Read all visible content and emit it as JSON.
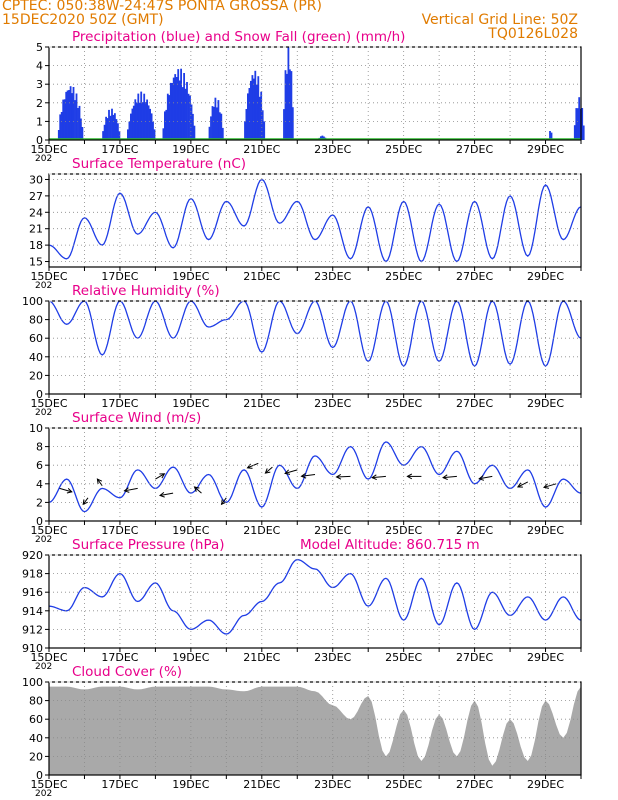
{
  "header": {
    "line1": "CPTEC:   050:38W-24:47S   PONTA GROSSA (PR)",
    "line2": "15DEC2020 50Z (GMT)",
    "grid_note": "Vertical Grid Line: 50Z",
    "code": "TQ0126L028"
  },
  "colors": {
    "header": "#e07b00",
    "title": "#e8008a",
    "series": "#1f3de6",
    "snow": "#2db82d",
    "cloud": "#a9a9a9"
  },
  "date_labels": [
    "15DEC",
    "17DEC",
    "19DEC",
    "21DEC",
    "23DEC",
    "25DEC",
    "27DEC",
    "29DEC"
  ],
  "year_stub": "202",
  "chart_data": [
    {
      "type": "bar",
      "id": "precip",
      "title": "Precipitation (blue) and Snow Fall (green) (mm/h)",
      "ylim": [
        0,
        5
      ],
      "yticks": [
        0,
        1,
        2,
        3,
        4,
        5
      ],
      "grid": true,
      "xlabel": "date",
      "ylabel": "mm/h",
      "bursts": [
        {
          "day": 0.25,
          "len": 0.7,
          "peak": 3.0
        },
        {
          "day": 1.5,
          "len": 0.5,
          "peak": 1.7
        },
        {
          "day": 2.2,
          "len": 0.8,
          "peak": 2.6
        },
        {
          "day": 3.2,
          "len": 0.9,
          "peak": 3.9
        },
        {
          "day": 4.5,
          "len": 0.4,
          "peak": 2.3
        },
        {
          "day": 5.5,
          "len": 0.6,
          "peak": 3.8
        },
        {
          "day": 6.6,
          "len": 0.3,
          "peak": 5.0
        },
        {
          "day": 7.6,
          "len": 0.2,
          "peak": 0.25
        },
        {
          "day": 14.1,
          "len": 0.1,
          "peak": 0.6
        },
        {
          "day": 14.8,
          "len": 0.3,
          "peak": 2.3
        }
      ]
    },
    {
      "type": "line",
      "id": "temperature",
      "title": "Surface Temperature (nC)",
      "ylim": [
        14,
        31
      ],
      "yticks": [
        15,
        18,
        21,
        24,
        27,
        30
      ],
      "grid": true,
      "xlabel": "date",
      "ylabel": "nC",
      "x": [
        0,
        0.5,
        1,
        1.5,
        2,
        2.5,
        3,
        3.5,
        4,
        4.5,
        5,
        5.5,
        6,
        6.5,
        7,
        7.5,
        8,
        8.5,
        9,
        9.5,
        10,
        10.5,
        11,
        11.5,
        12,
        12.5,
        13,
        13.5,
        14,
        14.5,
        15
      ],
      "y": [
        18,
        15.5,
        23,
        18,
        27.5,
        20,
        24,
        17.5,
        26.5,
        19,
        26,
        21.5,
        30,
        22,
        26,
        19,
        23.5,
        15.5,
        25,
        15,
        26,
        15,
        25.5,
        15,
        26,
        15.5,
        27,
        16,
        29,
        19,
        25
      ]
    },
    {
      "type": "line",
      "id": "humidity",
      "title": "Relative Humidity (%)",
      "ylim": [
        0,
        100
      ],
      "yticks": [
        0,
        20,
        40,
        60,
        80,
        100
      ],
      "grid": true,
      "xlabel": "date",
      "ylabel": "%",
      "x": [
        0,
        0.5,
        1,
        1.5,
        2,
        2.5,
        3,
        3.5,
        4,
        4.5,
        5,
        5.5,
        6,
        6.5,
        7,
        7.5,
        8,
        8.5,
        9,
        9.5,
        10,
        10.5,
        11,
        11.5,
        12,
        12.5,
        13,
        13.5,
        14,
        14.5,
        15
      ],
      "y": [
        100,
        75,
        100,
        42,
        100,
        60,
        100,
        60,
        100,
        72,
        80,
        100,
        45,
        100,
        65,
        100,
        50,
        100,
        35,
        100,
        30,
        100,
        35,
        100,
        30,
        100,
        32,
        100,
        30,
        100,
        60
      ]
    },
    {
      "type": "line",
      "id": "wind",
      "title": "Surface Wind (m/s)",
      "ylim": [
        0,
        10
      ],
      "yticks": [
        0,
        2,
        4,
        6,
        8,
        10
      ],
      "grid": true,
      "xlabel": "date",
      "ylabel": "m/s",
      "x": [
        0,
        0.5,
        1,
        1.5,
        2,
        2.5,
        3,
        3.5,
        4,
        4.5,
        5,
        5.5,
        6,
        6.5,
        7,
        7.5,
        8,
        8.5,
        9,
        9.5,
        10,
        10.5,
        11,
        11.5,
        12,
        12.5,
        13,
        13.5,
        14,
        14.5,
        15
      ],
      "y": [
        2,
        4.5,
        1,
        3.5,
        2.5,
        5.5,
        3.5,
        5.8,
        3,
        5,
        2,
        5.5,
        1.5,
        6,
        3.5,
        7,
        5,
        8,
        4.5,
        8.5,
        6,
        8,
        5,
        7.5,
        4,
        6,
        3.5,
        5.5,
        1.5,
        4.5,
        3
      ],
      "arrows": [
        {
          "day": 0.3,
          "speed": 3.5,
          "dir": 300
        },
        {
          "day": 1.1,
          "speed": 2.5,
          "dir": 20
        },
        {
          "day": 1.5,
          "speed": 3.8,
          "dir": 160
        },
        {
          "day": 2.5,
          "speed": 3.5,
          "dir": 70
        },
        {
          "day": 3.0,
          "speed": 4.5,
          "dir": 220
        },
        {
          "day": 3.5,
          "speed": 3.0,
          "dir": 70
        },
        {
          "day": 4.3,
          "speed": 3.0,
          "dir": 150
        },
        {
          "day": 5.0,
          "speed": 2.5,
          "dir": 20
        },
        {
          "day": 5.9,
          "speed": 6.2,
          "dir": 50
        },
        {
          "day": 6.3,
          "speed": 5.8,
          "dir": 30
        },
        {
          "day": 7.0,
          "speed": 5.5,
          "dir": 60
        },
        {
          "day": 7.5,
          "speed": 5.0,
          "dir": 75
        },
        {
          "day": 8.5,
          "speed": 4.8,
          "dir": 85
        },
        {
          "day": 9.5,
          "speed": 4.8,
          "dir": 80
        },
        {
          "day": 10.5,
          "speed": 4.8,
          "dir": 90
        },
        {
          "day": 11.5,
          "speed": 4.8,
          "dir": 80
        },
        {
          "day": 12.5,
          "speed": 4.8,
          "dir": 70
        },
        {
          "day": 13.5,
          "speed": 4.2,
          "dir": 45
        },
        {
          "day": 14.3,
          "speed": 4.0,
          "dir": 60
        }
      ]
    },
    {
      "type": "line",
      "id": "pressure",
      "title": "Surface Pressure (hPa)",
      "altitude_note": "Model Altitude:  860.715  m",
      "ylim": [
        910,
        920
      ],
      "yticks": [
        910,
        912,
        914,
        916,
        918,
        920
      ],
      "grid": true,
      "xlabel": "date",
      "ylabel": "hPa",
      "x": [
        0,
        0.5,
        1,
        1.5,
        2,
        2.5,
        3,
        3.5,
        4,
        4.5,
        5,
        5.5,
        6,
        6.5,
        7,
        7.5,
        8,
        8.5,
        9,
        9.5,
        10,
        10.5,
        11,
        11.5,
        12,
        12.5,
        13,
        13.5,
        14,
        14.5,
        15
      ],
      "y": [
        914.5,
        914,
        916.5,
        915.5,
        918,
        915,
        917,
        914,
        912,
        913,
        911.5,
        913.5,
        915,
        917,
        919.5,
        918.5,
        916.5,
        918,
        914.5,
        917.5,
        913,
        917.5,
        912.5,
        917,
        912,
        916,
        913.5,
        915.5,
        913,
        915.5,
        913
      ]
    },
    {
      "type": "area",
      "id": "cloud",
      "title": "Cloud Cover (%)",
      "ylim": [
        0,
        100
      ],
      "yticks": [
        0,
        20,
        40,
        60,
        80,
        100
      ],
      "grid": true,
      "xlabel": "date",
      "ylabel": "%",
      "x": [
        0,
        0.5,
        1,
        1.5,
        2,
        2.5,
        3,
        3.5,
        4,
        4.5,
        5,
        5.5,
        6,
        6.5,
        7,
        7.5,
        8,
        8.5,
        9,
        9.5,
        10,
        10.5,
        11,
        11.5,
        12,
        12.5,
        13,
        13.5,
        14,
        14.5,
        15
      ],
      "y": [
        95,
        95,
        92,
        95,
        95,
        92,
        95,
        95,
        95,
        95,
        92,
        90,
        95,
        95,
        95,
        90,
        75,
        60,
        85,
        20,
        70,
        15,
        65,
        20,
        80,
        10,
        60,
        15,
        80,
        40,
        95
      ]
    }
  ]
}
